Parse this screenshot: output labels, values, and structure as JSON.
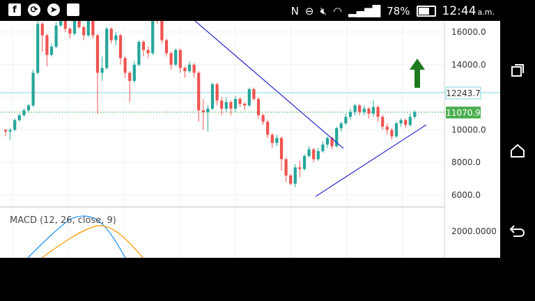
{
  "status_bar": {
    "left_icons": [
      "facebook-icon",
      "refresh-icon",
      "navigation-icon",
      "blank-notification-icon"
    ],
    "nfc": "N",
    "battery_percent": "78%",
    "battery_level": 0.78,
    "time": "12:44",
    "ampm": "a.m."
  },
  "chart": {
    "price_axis": [
      "16000.0",
      "14000.0",
      "10000.0",
      "8000.0",
      "6000.0"
    ],
    "price_axis_values": [
      16000,
      14000,
      10000,
      8000,
      6000
    ],
    "tag_resistance": "12243.7",
    "tag_current": "11070.9",
    "macd_label": "MACD (12, 26, close, 9)",
    "macd_axis": [
      "2000.0000"
    ],
    "colors": {
      "up": "#26a69a",
      "down": "#ef5350",
      "trend": "#3333cc",
      "resistance": "#7fd4e0",
      "current": "#4caf50",
      "arrow": "#1e7a1e"
    }
  },
  "candles": [
    [
      10000,
      9900,
      10050,
      9600
    ],
    [
      9900,
      10000,
      10100,
      9400
    ],
    [
      10000,
      10600,
      10700,
      9900
    ],
    [
      10600,
      10900,
      11000,
      10500
    ],
    [
      10900,
      11200,
      11300,
      10800
    ],
    [
      11200,
      11500,
      11600,
      11100
    ],
    [
      11500,
      13500,
      13700,
      11400
    ],
    [
      13500,
      16500,
      16800,
      13400
    ],
    [
      16500,
      15800,
      16600,
      14800
    ],
    [
      15800,
      14600,
      15900,
      13900
    ],
    [
      14600,
      15100,
      15300,
      14500
    ],
    [
      15100,
      16400,
      16600,
      15000
    ],
    [
      16400,
      16900,
      17000,
      16300
    ],
    [
      16900,
      16200,
      17000,
      16000
    ],
    [
      16200,
      15900,
      16300,
      15600
    ],
    [
      15900,
      17000,
      17100,
      15800
    ],
    [
      17000,
      16300,
      17100,
      16200
    ],
    [
      16300,
      15800,
      16400,
      15500
    ],
    [
      15800,
      16800,
      17000,
      15700
    ],
    [
      16800,
      15800,
      16900,
      15600
    ],
    [
      15800,
      13500,
      15900,
      11000
    ],
    [
      13500,
      13800,
      14500,
      13000
    ],
    [
      13800,
      16200,
      16300,
      13700
    ],
    [
      16200,
      15500,
      16300,
      15300
    ],
    [
      15500,
      15800,
      16000,
      15200
    ],
    [
      15800,
      14400,
      15900,
      14000
    ],
    [
      14400,
      13500,
      14500,
      13200
    ],
    [
      13500,
      13000,
      13600,
      11700
    ],
    [
      13000,
      14000,
      14200,
      12900
    ],
    [
      14000,
      15400,
      15500,
      13900
    ],
    [
      15400,
      14900,
      15500,
      14500
    ],
    [
      14900,
      14700,
      15100,
      14400
    ],
    [
      14700,
      17200,
      17400,
      14600
    ],
    [
      17200,
      16800,
      17300,
      16500
    ],
    [
      16800,
      15500,
      16900,
      15300
    ],
    [
      15500,
      14700,
      15600,
      14500
    ],
    [
      14700,
      14000,
      14800,
      13700
    ],
    [
      14000,
      14900,
      15000,
      13900
    ],
    [
      14900,
      13800,
      15000,
      13500
    ],
    [
      13800,
      13600,
      13900,
      13200
    ],
    [
      13600,
      14000,
      14200,
      13500
    ],
    [
      14000,
      13500,
      14100,
      13200
    ],
    [
      13500,
      11200,
      13600,
      10500
    ],
    [
      11200,
      11100,
      11900,
      10000
    ],
    [
      11100,
      11300,
      11500,
      9900
    ],
    [
      11300,
      12800,
      12900,
      11200
    ],
    [
      12800,
      11800,
      12900,
      11500
    ],
    [
      11800,
      11300,
      12000,
      10900
    ],
    [
      11300,
      11700,
      12000,
      11100
    ],
    [
      11700,
      11300,
      11800,
      10900
    ],
    [
      11300,
      11900,
      12100,
      11100
    ],
    [
      11900,
      11600,
      12000,
      11400
    ],
    [
      11600,
      11500,
      11700,
      11200
    ],
    [
      11500,
      12500,
      12600,
      11400
    ],
    [
      12500,
      11900,
      12600,
      11800
    ],
    [
      11900,
      10900,
      12000,
      10700
    ],
    [
      10900,
      10500,
      11000,
      10300
    ],
    [
      10500,
      9700,
      10600,
      9500
    ],
    [
      9700,
      9200,
      9800,
      8900
    ],
    [
      9200,
      9500,
      9700,
      9000
    ],
    [
      9500,
      8200,
      9600,
      7500
    ],
    [
      8200,
      7200,
      8300,
      6800
    ],
    [
      7200,
      6700,
      7300,
      6600
    ],
    [
      6700,
      7700,
      7900,
      6500
    ],
    [
      7700,
      7600,
      8100,
      7100
    ],
    [
      7600,
      8400,
      8500,
      7500
    ],
    [
      8400,
      8800,
      9000,
      8300
    ],
    [
      8800,
      8200,
      8900,
      8000
    ],
    [
      8200,
      8700,
      8900,
      8100
    ],
    [
      8700,
      9100,
      9300,
      8600
    ],
    [
      9100,
      9500,
      9600,
      8900
    ],
    [
      9500,
      9000,
      9600,
      8800
    ],
    [
      9000,
      10100,
      10200,
      8900
    ],
    [
      10100,
      10400,
      10500,
      9900
    ],
    [
      10400,
      10800,
      11000,
      10300
    ],
    [
      10800,
      11100,
      11300,
      10600
    ],
    [
      11100,
      11500,
      11600,
      10900
    ],
    [
      11500,
      11100,
      11600,
      10900
    ],
    [
      11100,
      11300,
      11500,
      10900
    ],
    [
      11300,
      11000,
      11400,
      10700
    ],
    [
      11000,
      11400,
      11800,
      10800
    ],
    [
      11400,
      10800,
      11500,
      10500
    ],
    [
      10800,
      10200,
      10900,
      10000
    ],
    [
      10200,
      10000,
      10400,
      9700
    ],
    [
      10000,
      9600,
      10100,
      9400
    ],
    [
      9600,
      10400,
      10500,
      9500
    ],
    [
      10400,
      10600,
      10700,
      10200
    ],
    [
      10600,
      10300,
      10700,
      10100
    ],
    [
      10300,
      10800,
      11000,
      10200
    ],
    [
      10800,
      11100,
      11200,
      10700
    ]
  ]
}
